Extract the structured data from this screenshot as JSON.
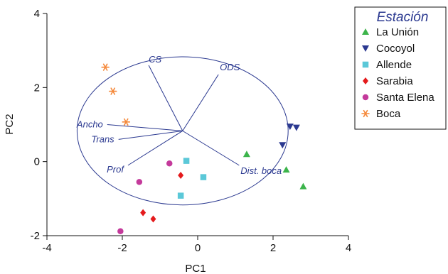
{
  "chart_data": {
    "type": "scatter",
    "xlabel": "PC1",
    "ylabel": "PC2",
    "xlim": [
      -4,
      4
    ],
    "ylim": [
      -2,
      4
    ],
    "x_ticks": [
      "-4",
      "-2",
      "0",
      "2",
      "4"
    ],
    "y_ticks": [
      "-2",
      "0",
      "2",
      "4"
    ],
    "legend_title": "Estación",
    "legend_position": "top-right",
    "grid": false,
    "series": [
      {
        "name": "La Unión",
        "color": "#3cb44b",
        "marker": "triangle-up",
        "points": [
          [
            1.3,
            0.2
          ],
          [
            2.35,
            -0.22
          ],
          [
            2.8,
            -0.67
          ]
        ]
      },
      {
        "name": "Cocoyol",
        "color": "#2b3990",
        "marker": "triangle-down",
        "points": [
          [
            2.45,
            0.95
          ],
          [
            2.62,
            0.92
          ],
          [
            2.25,
            0.45
          ]
        ]
      },
      {
        "name": "Allende",
        "color": "#5bc8d8",
        "marker": "square",
        "points": [
          [
            -0.3,
            0.02
          ],
          [
            0.15,
            -0.42
          ],
          [
            -0.45,
            -0.92
          ]
        ]
      },
      {
        "name": "Sarabia",
        "color": "#e41a1c",
        "marker": "diamond",
        "points": [
          [
            -0.45,
            -0.37
          ],
          [
            -1.45,
            -1.38
          ],
          [
            -1.18,
            -1.55
          ]
        ]
      },
      {
        "name": "Santa Elena",
        "color": "#c43a9b",
        "marker": "circle",
        "points": [
          [
            -0.75,
            -0.05
          ],
          [
            -1.55,
            -0.55
          ],
          [
            -2.05,
            -1.88
          ]
        ]
      },
      {
        "name": "Boca",
        "color": "#f58a3c",
        "marker": "asterisk",
        "points": [
          [
            -2.45,
            2.55
          ],
          [
            -2.25,
            1.9
          ],
          [
            -1.9,
            1.07
          ]
        ]
      }
    ],
    "loadings": [
      {
        "label": "CS",
        "x": -1.3,
        "y": 2.6
      },
      {
        "label": "ODS",
        "x": 0.55,
        "y": 2.35
      },
      {
        "label": "Ancho",
        "x": -2.4,
        "y": 1.0
      },
      {
        "label": "Trans",
        "x": -2.1,
        "y": 0.6
      },
      {
        "label": "Prof",
        "x": -1.85,
        "y": -0.1
      },
      {
        "label": "Dist. boca",
        "x": 1.1,
        "y": -0.1
      }
    ],
    "circle": {
      "cx": -0.4,
      "cy": 0.83,
      "rx": 2.8,
      "ry": 2.0
    }
  }
}
